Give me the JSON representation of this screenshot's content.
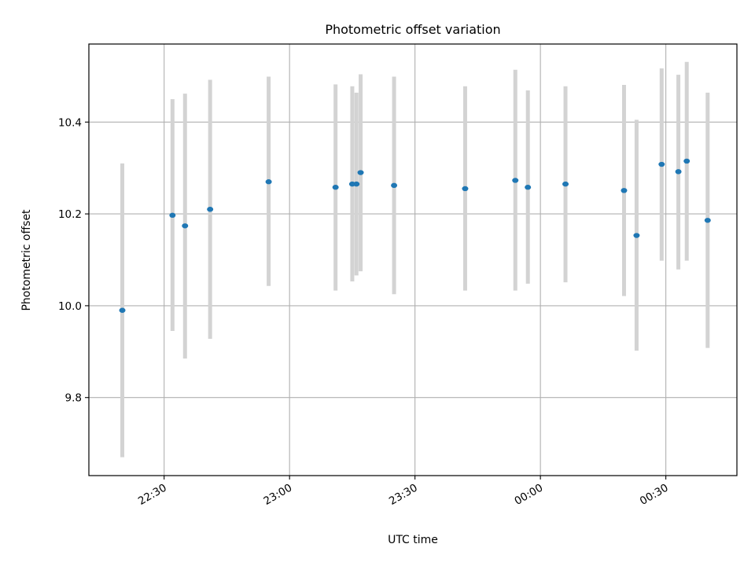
{
  "chart_data": {
    "type": "scatter",
    "title": "Photometric offset variation",
    "xlabel": "UTC time",
    "ylabel": "Photometric offset",
    "x_is_time": true,
    "xlim": [
      "22:12",
      "00:47"
    ],
    "ylim": [
      9.63,
      10.57
    ],
    "xticks": [
      {
        "t": "22:30",
        "label": "22:30"
      },
      {
        "t": "23:00",
        "label": "23:00"
      },
      {
        "t": "23:30",
        "label": "23:30"
      },
      {
        "t": "00:00",
        "label": "00:00"
      },
      {
        "t": "00:30",
        "label": "00:30"
      }
    ],
    "yticks": [
      9.8,
      10.0,
      10.2,
      10.4
    ],
    "grid": true,
    "colors": {
      "points": "#1f77b4",
      "errorbars": "#d3d3d3",
      "grid": "#b0b0b0"
    },
    "series": [
      {
        "points": [
          {
            "t": "22:20",
            "y": 9.99,
            "lo": 9.67,
            "hi": 10.31
          },
          {
            "t": "22:32",
            "y": 10.197,
            "lo": 9.945,
            "hi": 10.45
          },
          {
            "t": "22:35",
            "y": 10.174,
            "lo": 9.885,
            "hi": 10.462
          },
          {
            "t": "22:41",
            "y": 10.21,
            "lo": 9.928,
            "hi": 10.492
          },
          {
            "t": "22:55",
            "y": 10.27,
            "lo": 10.043,
            "hi": 10.499
          },
          {
            "t": "23:11",
            "y": 10.258,
            "lo": 10.033,
            "hi": 10.482
          },
          {
            "t": "23:15",
            "y": 10.265,
            "lo": 10.053,
            "hi": 10.478
          },
          {
            "t": "23:16",
            "y": 10.265,
            "lo": 10.066,
            "hi": 10.464
          },
          {
            "t": "23:17",
            "y": 10.29,
            "lo": 10.075,
            "hi": 10.504
          },
          {
            "t": "23:25",
            "y": 10.262,
            "lo": 10.025,
            "hi": 10.499
          },
          {
            "t": "23:42",
            "y": 10.255,
            "lo": 10.033,
            "hi": 10.478
          },
          {
            "t": "23:54",
            "y": 10.273,
            "lo": 10.033,
            "hi": 10.514
          },
          {
            "t": "23:57",
            "y": 10.258,
            "lo": 10.048,
            "hi": 10.469
          },
          {
            "t": "00:06",
            "y": 10.265,
            "lo": 10.051,
            "hi": 10.478
          },
          {
            "t": "00:20",
            "y": 10.251,
            "lo": 10.021,
            "hi": 10.481
          },
          {
            "t": "00:23",
            "y": 10.153,
            "lo": 9.902,
            "hi": 10.405
          },
          {
            "t": "00:29",
            "y": 10.308,
            "lo": 10.098,
            "hi": 10.517
          },
          {
            "t": "00:33",
            "y": 10.292,
            "lo": 10.079,
            "hi": 10.503
          },
          {
            "t": "00:35",
            "y": 10.315,
            "lo": 10.098,
            "hi": 10.531
          },
          {
            "t": "00:40",
            "y": 10.186,
            "lo": 9.908,
            "hi": 10.464
          }
        ]
      }
    ]
  }
}
